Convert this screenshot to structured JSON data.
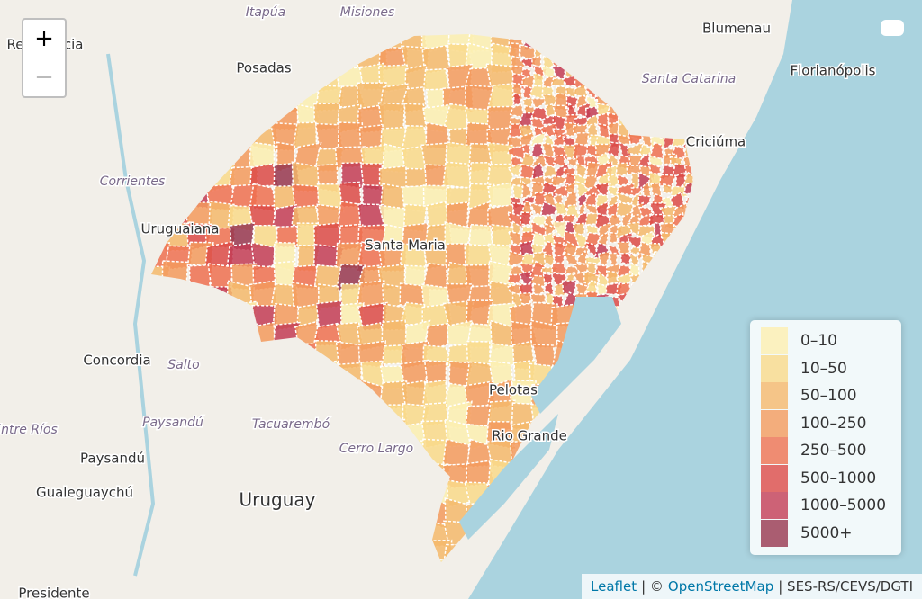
{
  "map": {
    "zoom_in": "+",
    "zoom_out": "−",
    "places": [
      "Itapúa",
      "Misiones",
      "Blumenau",
      "Florianópolis",
      "Posadas",
      "Santa Catarina",
      "Criciúma",
      "Corrientes",
      "Uruguaiana",
      "Santa Maria",
      "Concordia",
      "Salto",
      "Paysandú",
      "Tacuarembó",
      "Entre Ríos",
      "Cerro Largo",
      "Paysandú",
      "Gualeguaychú",
      "Uruguay",
      "Pelotas",
      "Rio Grande",
      "Resistencia",
      "Presidente"
    ],
    "legend": [
      {
        "label": "0–10",
        "color": "#fcefb0"
      },
      {
        "label": "10–50",
        "color": "#f9d98a"
      },
      {
        "label": "50–100",
        "color": "#f5b86b"
      },
      {
        "label": "100–250",
        "color": "#f39a5d"
      },
      {
        "label": "250–500",
        "color": "#ee7050"
      },
      {
        "label": "500–1000",
        "color": "#dc4a47"
      },
      {
        "label": "1000–5000",
        "color": "#c33c55"
      },
      {
        "label": "5000+",
        "color": "#97364f"
      }
    ],
    "attribution": {
      "leaflet": "Leaflet",
      "copy": "| ©",
      "osm": "OpenStreetMap",
      "source": "| SES-RS/CEVS/DGTI"
    }
  }
}
